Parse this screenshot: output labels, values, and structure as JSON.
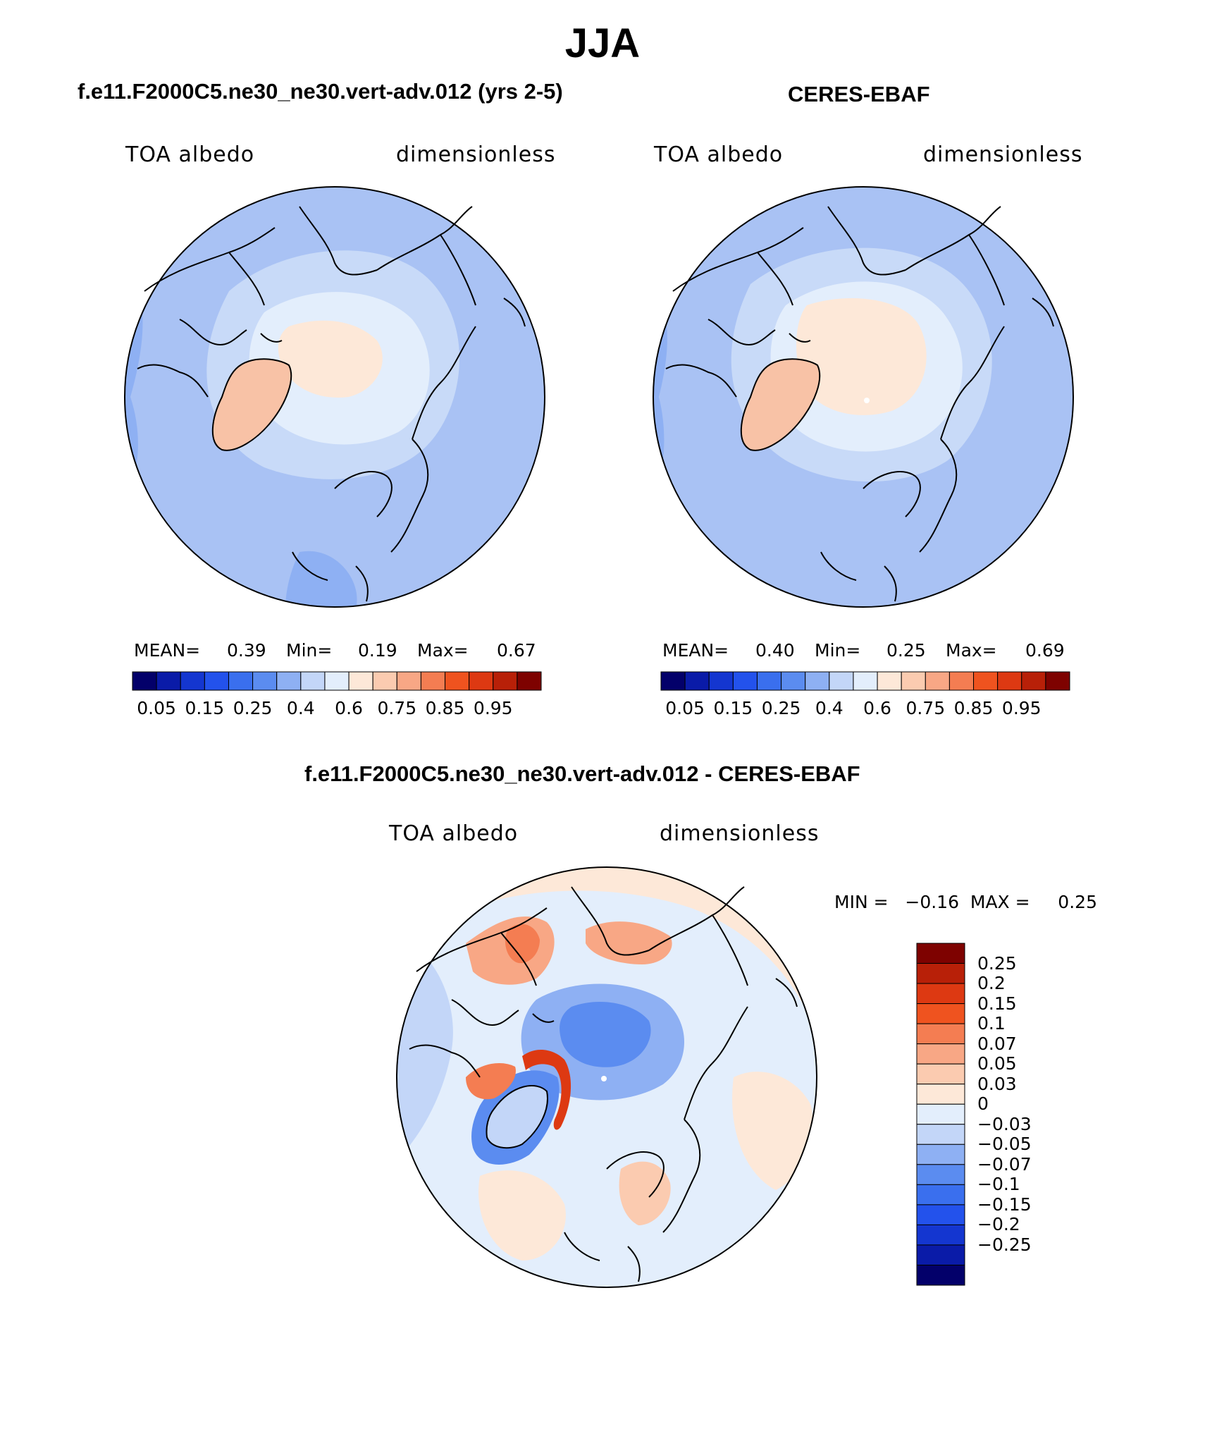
{
  "page": {
    "title": "JJA"
  },
  "panels": {
    "model": {
      "title": "f.e11.F2000C5.ne30_ne30.vert-adv.012 (yrs 2-5)",
      "left_label": "TOA albedo",
      "right_label": "dimensionless",
      "stats": {
        "mean_label": "MEAN=",
        "mean": "0.39",
        "min_label": "Min=",
        "min": "0.19",
        "max_label": "Max=",
        "max": "0.67"
      }
    },
    "obs": {
      "title": "CERES-EBAF",
      "left_label": "TOA albedo",
      "right_label": "dimensionless",
      "stats": {
        "mean_label": "MEAN=",
        "mean": "0.40",
        "min_label": "Min=",
        "min": "0.25",
        "max_label": "Max=",
        "max": "0.69"
      }
    },
    "diff": {
      "title": "f.e11.F2000C5.ne30_ne30.vert-adv.012 - CERES-EBAF",
      "left_label": "TOA albedo",
      "right_label": "dimensionless",
      "minmax": "MIN =   −0.16  MAX =     0.25"
    }
  },
  "colorbars": {
    "abs": {
      "colors": [
        "#03006a",
        "#0a1ba8",
        "#1436d0",
        "#2352ec",
        "#3a6fee",
        "#5b8cf0",
        "#8eb0f3",
        "#c3d6f8",
        "#e3eefc",
        "#fde8d8",
        "#fbcbb0",
        "#f8a785",
        "#f47d52",
        "#ef531f",
        "#dd3912",
        "#b82008",
        "#7e0200"
      ],
      "labels": [
        "0.05",
        "0.15",
        "0.25",
        "0.4",
        "0.6",
        "0.75",
        "0.85",
        "0.95"
      ]
    },
    "diff": {
      "colors": [
        "#7e0200",
        "#b82008",
        "#dd3912",
        "#ef531f",
        "#f47d52",
        "#f8a785",
        "#fbcbb0",
        "#fde8d8",
        "#e3eefc",
        "#c3d6f8",
        "#8eb0f3",
        "#5b8cf0",
        "#3a6fee",
        "#2352ec",
        "#1436d0",
        "#0a1ba8",
        "#03006a"
      ],
      "labels": [
        "0.25",
        "0.2",
        "0.15",
        "0.1",
        "0.07",
        "0.05",
        "0.03",
        "0",
        "−0.03",
        "−0.05",
        "−0.07",
        "−0.1",
        "−0.15",
        "−0.2",
        "−0.25"
      ]
    }
  },
  "map_colors": {
    "ocean_abs": "#a9c2f4",
    "ocean_light": "#c8daf8",
    "pale_blue": "#e3eefc",
    "peach": "#fde8d8",
    "salmon": "#f8c2a6",
    "mid_blue": "#8eb0f3",
    "deep_blue": "#5b8cf0",
    "orange": "#f47d52",
    "red": "#dd3912",
    "coast": "#000000"
  }
}
